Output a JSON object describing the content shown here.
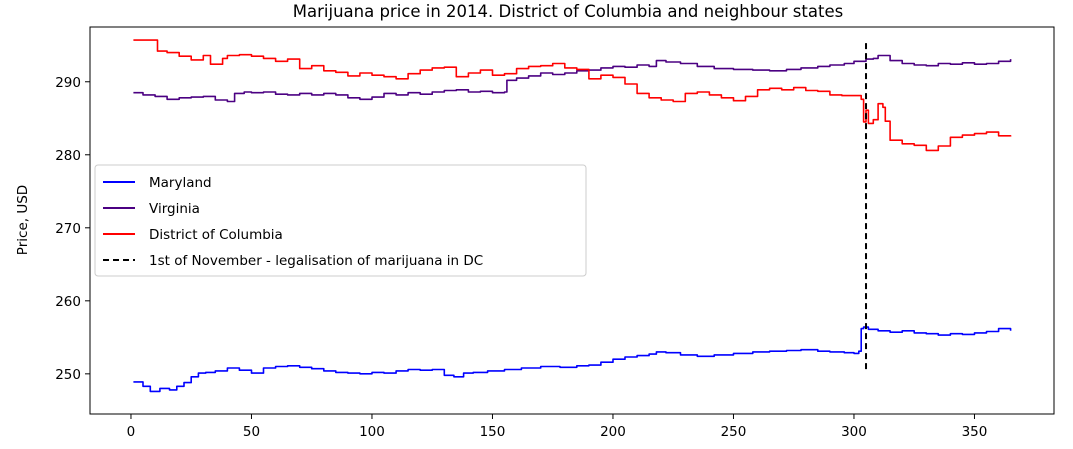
{
  "chart_data": {
    "type": "line",
    "title": "Marijuana price in 2014. District of Columbia and neighbour states",
    "xlabel": "",
    "ylabel": "Price, USD",
    "xlim": [
      -17,
      383
    ],
    "ylim": [
      244.5,
      297.5
    ],
    "xticks": [
      0,
      50,
      100,
      150,
      200,
      250,
      300,
      350
    ],
    "yticks": [
      250,
      260,
      270,
      280,
      290
    ],
    "grid": false,
    "legend_position": "center-left",
    "series": [
      {
        "name": "Maryland",
        "color": "#0000ff",
        "x": [
          1,
          5,
          8,
          12,
          16,
          19,
          22,
          25,
          28,
          31,
          35,
          40,
          45,
          50,
          55,
          60,
          65,
          70,
          75,
          80,
          85,
          90,
          95,
          100,
          105,
          110,
          115,
          120,
          125,
          130,
          134,
          138,
          142,
          148,
          155,
          162,
          170,
          178,
          185,
          190,
          195,
          200,
          205,
          210,
          215,
          218,
          222,
          228,
          235,
          242,
          250,
          258,
          265,
          272,
          278,
          285,
          290,
          296,
          300,
          302,
          303,
          304,
          306,
          310,
          315,
          320,
          325,
          330,
          335,
          340,
          345,
          350,
          355,
          360,
          365
        ],
        "values": [
          248.9,
          248.3,
          247.6,
          248.0,
          247.8,
          248.3,
          248.8,
          249.6,
          250.1,
          250.2,
          250.4,
          250.8,
          250.5,
          250.1,
          250.8,
          251.0,
          251.1,
          250.9,
          250.7,
          250.4,
          250.2,
          250.1,
          250.0,
          250.2,
          250.1,
          250.4,
          250.6,
          250.5,
          250.6,
          249.8,
          249.6,
          250.1,
          250.2,
          250.4,
          250.6,
          250.8,
          251.0,
          250.9,
          251.1,
          251.2,
          251.6,
          252.0,
          252.3,
          252.5,
          252.7,
          253.0,
          252.9,
          252.6,
          252.4,
          252.6,
          252.8,
          253.0,
          253.1,
          253.2,
          253.3,
          253.1,
          253.0,
          252.9,
          252.8,
          253.1,
          256.2,
          256.4,
          256.1,
          255.9,
          255.7,
          255.9,
          255.6,
          255.5,
          255.3,
          255.5,
          255.4,
          255.6,
          255.8,
          256.2,
          255.9
        ]
      },
      {
        "name": "Virginia",
        "color": "#4b0082",
        "x": [
          1,
          5,
          10,
          15,
          20,
          25,
          30,
          35,
          40,
          43,
          47,
          50,
          55,
          60,
          65,
          70,
          75,
          80,
          85,
          90,
          95,
          100,
          105,
          110,
          115,
          120,
          125,
          130,
          135,
          140,
          145,
          150,
          155,
          156,
          160,
          165,
          170,
          175,
          180,
          185,
          190,
          195,
          200,
          205,
          210,
          215,
          218,
          222,
          228,
          235,
          242,
          250,
          258,
          265,
          272,
          278,
          285,
          290,
          296,
          300,
          305,
          308,
          310,
          315,
          320,
          325,
          330,
          335,
          340,
          345,
          350,
          355,
          360,
          365
        ],
        "values": [
          288.5,
          288.2,
          288.0,
          287.6,
          287.8,
          287.9,
          288.0,
          287.5,
          287.3,
          288.4,
          288.6,
          288.5,
          288.6,
          288.3,
          288.2,
          288.4,
          288.2,
          288.4,
          288.2,
          287.8,
          287.6,
          287.9,
          288.4,
          288.2,
          288.5,
          288.3,
          288.6,
          288.8,
          288.9,
          288.6,
          288.7,
          288.5,
          288.6,
          290.2,
          290.5,
          290.8,
          291.2,
          291.0,
          291.2,
          291.5,
          291.6,
          291.9,
          292.1,
          292.0,
          292.3,
          292.1,
          292.9,
          292.7,
          292.5,
          292.1,
          291.8,
          291.7,
          291.6,
          291.5,
          291.7,
          291.9,
          292.1,
          292.3,
          292.5,
          292.8,
          293.1,
          293.2,
          293.6,
          292.9,
          292.5,
          292.3,
          292.2,
          292.5,
          292.4,
          292.6,
          292.4,
          292.5,
          292.8,
          293.1
        ]
      },
      {
        "name": "District of Columbia",
        "color": "#ff0000",
        "x": [
          1,
          5,
          10,
          11,
          15,
          20,
          25,
          30,
          33,
          38,
          40,
          45,
          50,
          55,
          60,
          65,
          70,
          75,
          80,
          85,
          90,
          95,
          100,
          105,
          110,
          115,
          120,
          125,
          130,
          135,
          140,
          145,
          150,
          155,
          160,
          165,
          170,
          175,
          180,
          185,
          190,
          195,
          200,
          205,
          210,
          215,
          220,
          225,
          230,
          235,
          240,
          245,
          250,
          255,
          260,
          265,
          270,
          275,
          280,
          285,
          290,
          295,
          300,
          303,
          304,
          305,
          306,
          308,
          310,
          312,
          313,
          315,
          320,
          325,
          330,
          335,
          340,
          345,
          350,
          355,
          360,
          365
        ],
        "values": [
          295.7,
          295.7,
          295.7,
          294.2,
          294.0,
          293.5,
          293.0,
          293.6,
          292.4,
          293.2,
          293.6,
          293.7,
          293.5,
          293.2,
          292.8,
          293.1,
          291.8,
          292.2,
          291.5,
          291.3,
          290.8,
          291.2,
          290.9,
          290.7,
          290.4,
          291.1,
          291.6,
          291.9,
          292.0,
          290.7,
          291.2,
          291.6,
          290.9,
          291.1,
          291.8,
          292.1,
          292.2,
          292.5,
          291.9,
          291.7,
          290.4,
          290.9,
          290.6,
          289.7,
          288.4,
          287.8,
          287.5,
          287.3,
          288.4,
          288.6,
          288.2,
          287.8,
          287.4,
          288.0,
          288.9,
          289.1,
          288.9,
          289.2,
          288.8,
          288.7,
          288.2,
          288.1,
          288.1,
          287.6,
          284.5,
          286.1,
          284.3,
          284.8,
          287.0,
          286.5,
          284.6,
          282.0,
          281.5,
          281.3,
          280.6,
          281.2,
          282.4,
          282.7,
          282.9,
          283.1,
          282.6,
          282.5
        ]
      }
    ],
    "vline": {
      "label": "1st of November - legalisation of marijuana in DC",
      "x": 305,
      "ymin": 250.3,
      "ymax": 295.3,
      "color": "#000000",
      "style": "dashed"
    }
  }
}
